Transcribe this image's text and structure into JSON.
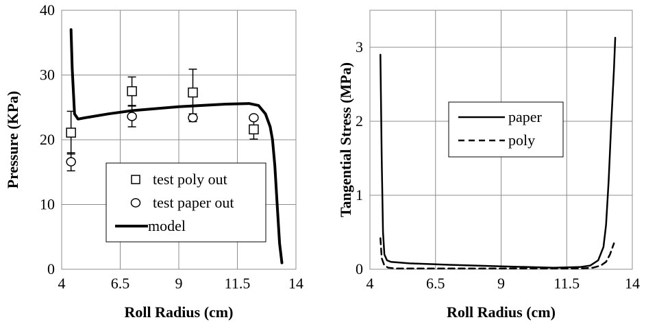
{
  "chart_data": [
    {
      "type": "line",
      "title": "",
      "xlabel": "Roll Radius (cm)",
      "ylabel": "Pressure (KPa)",
      "xlim": [
        4,
        14
      ],
      "ylim": [
        0,
        40
      ],
      "x_ticks": [
        "4",
        "6.5",
        "9",
        "11.5",
        "14"
      ],
      "y_ticks": [
        "0",
        "10",
        "20",
        "30",
        "40"
      ],
      "grid": true,
      "legend_position": "bottom-center",
      "series": [
        {
          "name": "test poly out",
          "kind": "scatter",
          "marker": "square",
          "points": [
            {
              "x": 4.4,
              "y": 21.1,
              "err": 3.3
            },
            {
              "x": 7.0,
              "y": 27.5,
              "err": 2.2
            },
            {
              "x": 9.6,
              "y": 27.3,
              "err": 3.6
            },
            {
              "x": 12.2,
              "y": 21.6,
              "err": 1.5
            }
          ]
        },
        {
          "name": "test paper out",
          "kind": "scatter",
          "marker": "circle",
          "points": [
            {
              "x": 4.4,
              "y": 16.6,
              "err": 1.4
            },
            {
              "x": 7.0,
              "y": 23.6,
              "err": 1.6
            },
            {
              "x": 9.6,
              "y": 23.4,
              "err": 0.6
            },
            {
              "x": 12.2,
              "y": 23.4,
              "err": 0.0
            }
          ]
        },
        {
          "name": "model",
          "kind": "line",
          "style": "thick-solid",
          "x": [
            4.4,
            4.45,
            4.55,
            4.7,
            5.0,
            6.0,
            7.0,
            8.0,
            9.0,
            10.0,
            11.0,
            12.0,
            12.4,
            12.7,
            12.9,
            13.0,
            13.1,
            13.2,
            13.3,
            13.4
          ],
          "y": [
            37.0,
            31.0,
            24.0,
            23.2,
            23.4,
            24.0,
            24.5,
            24.8,
            25.1,
            25.3,
            25.5,
            25.6,
            25.3,
            24.0,
            22.0,
            20.0,
            16.0,
            10.0,
            4.0,
            1.0
          ]
        }
      ]
    },
    {
      "type": "line",
      "title": "",
      "xlabel": "Roll Radius (cm)",
      "ylabel": "Tangential Stress (MPa)",
      "xlim": [
        4,
        14
      ],
      "ylim": [
        0,
        3.5
      ],
      "x_ticks": [
        "4",
        "6.5",
        "9",
        "11.5",
        "14"
      ],
      "y_ticks": [
        "0",
        "1",
        "2",
        "3"
      ],
      "grid": true,
      "legend_position": "middle-left",
      "series": [
        {
          "name": "paper",
          "style": "solid",
          "x": [
            4.4,
            4.45,
            4.5,
            4.55,
            4.65,
            4.8,
            5.5,
            7.0,
            9.0,
            11.0,
            12.0,
            12.4,
            12.7,
            12.9,
            13.0,
            13.1,
            13.2,
            13.3,
            13.35
          ],
          "y": [
            2.9,
            1.5,
            0.5,
            0.2,
            0.12,
            0.1,
            0.08,
            0.06,
            0.04,
            0.02,
            0.03,
            0.05,
            0.12,
            0.3,
            0.6,
            1.2,
            2.0,
            2.7,
            3.13
          ]
        },
        {
          "name": "poly",
          "style": "dashed",
          "x": [
            4.4,
            4.45,
            4.55,
            4.7,
            5.0,
            7.0,
            9.0,
            11.0,
            12.0,
            12.5,
            12.8,
            13.0,
            13.15,
            13.3
          ],
          "y": [
            0.42,
            0.15,
            0.05,
            0.02,
            0.01,
            0.01,
            0.01,
            0.01,
            0.01,
            0.02,
            0.05,
            0.1,
            0.2,
            0.35
          ]
        }
      ]
    }
  ]
}
